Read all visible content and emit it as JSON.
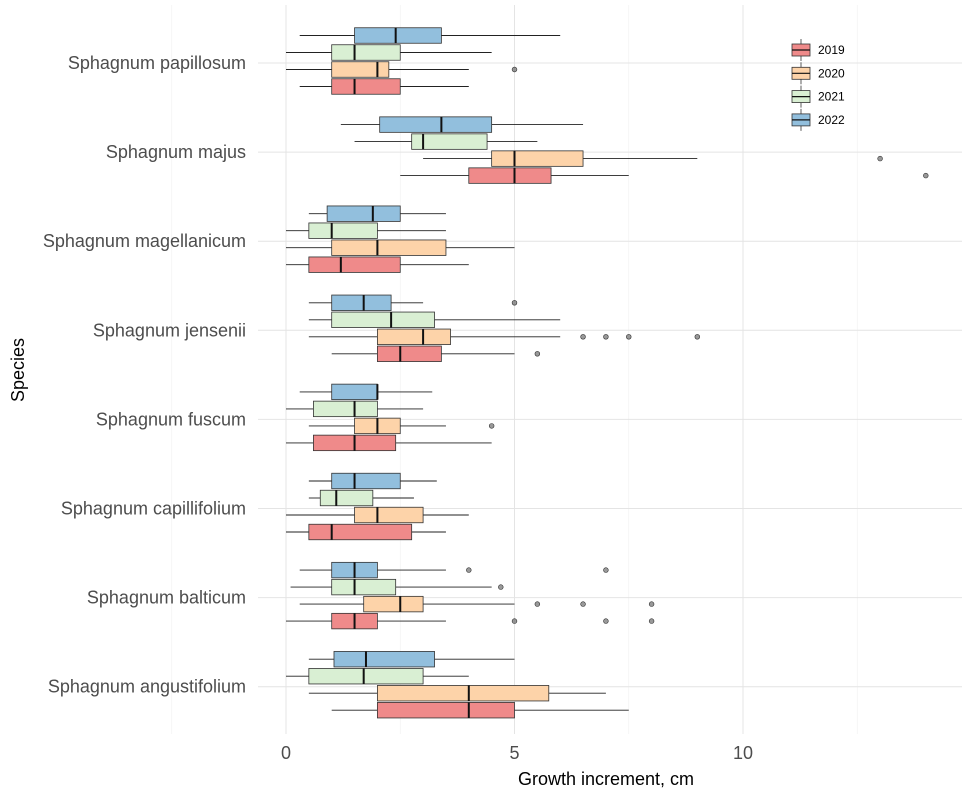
{
  "chart_data": {
    "type": "boxplot",
    "orientation": "horizontal",
    "xlabel": "Growth increment, cm",
    "ylabel": "Species",
    "xlim": [
      -1.2,
      14.7
    ],
    "x_ticks": [
      0,
      5,
      10
    ],
    "grid": true,
    "legend": {
      "placement": "top-right",
      "entries": [
        "2019",
        "2020",
        "2021",
        "2022"
      ]
    },
    "colors": {
      "2019": "#ef8a8a",
      "2020": "#fdd3a9",
      "2021": "#d9efd3",
      "2022": "#92bfdd"
    },
    "categories": [
      "Sphagnum papillosum",
      "Sphagnum majus",
      "Sphagnum magellanicum",
      "Sphagnum jensenii",
      "Sphagnum fuscum",
      "Sphagnum capillifolium",
      "Sphagnum balticum",
      "Sphagnum angustifolium"
    ],
    "series": [
      {
        "name": "2019",
        "boxes": [
          {
            "whisker_low": 0.3,
            "q1": 1.0,
            "median": 1.5,
            "q3": 2.5,
            "whisker_high": 4.0,
            "outliers": []
          },
          {
            "whisker_low": 2.5,
            "q1": 4.0,
            "median": 5.0,
            "q3": 5.8,
            "whisker_high": 7.5,
            "outliers": [
              14.0
            ]
          },
          {
            "whisker_low": 0.0,
            "q1": 0.5,
            "median": 1.2,
            "q3": 2.5,
            "whisker_high": 4.0,
            "outliers": []
          },
          {
            "whisker_low": 1.0,
            "q1": 2.0,
            "median": 2.5,
            "q3": 3.4,
            "whisker_high": 5.0,
            "outliers": [
              5.5
            ]
          },
          {
            "whisker_low": 0.0,
            "q1": 0.6,
            "median": 1.5,
            "q3": 2.4,
            "whisker_high": 4.5,
            "outliers": []
          },
          {
            "whisker_low": 0.0,
            "q1": 0.5,
            "median": 1.0,
            "q3": 2.75,
            "whisker_high": 3.5,
            "outliers": []
          },
          {
            "whisker_low": 0.0,
            "q1": 1.0,
            "median": 1.5,
            "q3": 2.0,
            "whisker_high": 3.5,
            "outliers": [
              5.0,
              7.0,
              8.0
            ]
          },
          {
            "whisker_low": 1.0,
            "q1": 2.0,
            "median": 4.0,
            "q3": 5.0,
            "whisker_high": 7.5,
            "outliers": []
          }
        ]
      },
      {
        "name": "2020",
        "boxes": [
          {
            "whisker_low": 0.0,
            "q1": 1.0,
            "median": 2.0,
            "q3": 2.25,
            "whisker_high": 4.0,
            "outliers": [
              5.0
            ]
          },
          {
            "whisker_low": 3.0,
            "q1": 4.5,
            "median": 5.0,
            "q3": 6.5,
            "whisker_high": 9.0,
            "outliers": [
              13.0
            ]
          },
          {
            "whisker_low": 0.0,
            "q1": 1.0,
            "median": 2.0,
            "q3": 3.5,
            "whisker_high": 5.0,
            "outliers": []
          },
          {
            "whisker_low": 0.5,
            "q1": 2.0,
            "median": 3.0,
            "q3": 3.6,
            "whisker_high": 6.0,
            "outliers": [
              6.5,
              7.0,
              7.5,
              9.0
            ]
          },
          {
            "whisker_low": 0.5,
            "q1": 1.5,
            "median": 2.0,
            "q3": 2.5,
            "whisker_high": 3.5,
            "outliers": [
              4.5
            ]
          },
          {
            "whisker_low": 0.0,
            "q1": 1.5,
            "median": 2.0,
            "q3": 3.0,
            "whisker_high": 4.0,
            "outliers": []
          },
          {
            "whisker_low": 0.3,
            "q1": 1.7,
            "median": 2.5,
            "q3": 3.0,
            "whisker_high": 5.0,
            "outliers": [
              5.5,
              6.5,
              8.0
            ]
          },
          {
            "whisker_low": 0.5,
            "q1": 2.0,
            "median": 4.0,
            "q3": 5.75,
            "whisker_high": 7.0,
            "outliers": []
          }
        ]
      },
      {
        "name": "2021",
        "boxes": [
          {
            "whisker_low": 0.0,
            "q1": 1.0,
            "median": 1.5,
            "q3": 2.5,
            "whisker_high": 4.5,
            "outliers": []
          },
          {
            "whisker_low": 1.5,
            "q1": 2.75,
            "median": 3.0,
            "q3": 4.4,
            "whisker_high": 5.5,
            "outliers": []
          },
          {
            "whisker_low": 0.0,
            "q1": 0.5,
            "median": 1.0,
            "q3": 2.0,
            "whisker_high": 3.5,
            "outliers": []
          },
          {
            "whisker_low": 0.5,
            "q1": 1.0,
            "median": 2.3,
            "q3": 3.25,
            "whisker_high": 6.0,
            "outliers": []
          },
          {
            "whisker_low": 0.0,
            "q1": 0.6,
            "median": 1.5,
            "q3": 2.0,
            "whisker_high": 3.0,
            "outliers": []
          },
          {
            "whisker_low": 0.5,
            "q1": 0.75,
            "median": 1.1,
            "q3": 1.9,
            "whisker_high": 2.8,
            "outliers": []
          },
          {
            "whisker_low": 0.1,
            "q1": 1.0,
            "median": 1.5,
            "q3": 2.4,
            "whisker_high": 4.5,
            "outliers": [
              4.7
            ]
          },
          {
            "whisker_low": 0.0,
            "q1": 0.5,
            "median": 1.7,
            "q3": 3.0,
            "whisker_high": 4.0,
            "outliers": []
          }
        ]
      },
      {
        "name": "2022",
        "boxes": [
          {
            "whisker_low": 0.3,
            "q1": 1.5,
            "median": 2.4,
            "q3": 3.4,
            "whisker_high": 6.0,
            "outliers": []
          },
          {
            "whisker_low": 1.2,
            "q1": 2.05,
            "median": 3.4,
            "q3": 4.5,
            "whisker_high": 6.5,
            "outliers": []
          },
          {
            "whisker_low": 0.5,
            "q1": 0.9,
            "median": 1.9,
            "q3": 2.5,
            "whisker_high": 3.5,
            "outliers": []
          },
          {
            "whisker_low": 0.5,
            "q1": 1.0,
            "median": 1.7,
            "q3": 2.3,
            "whisker_high": 3.0,
            "outliers": [
              5.0
            ]
          },
          {
            "whisker_low": 0.3,
            "q1": 1.0,
            "median": 2.0,
            "q3": 2.0,
            "whisker_high": 3.2,
            "outliers": []
          },
          {
            "whisker_low": 0.5,
            "q1": 1.0,
            "median": 1.5,
            "q3": 2.5,
            "whisker_high": 3.3,
            "outliers": []
          },
          {
            "whisker_low": 0.3,
            "q1": 1.0,
            "median": 1.5,
            "q3": 2.0,
            "whisker_high": 3.5,
            "outliers": [
              4.0,
              7.0
            ]
          },
          {
            "whisker_low": 0.5,
            "q1": 1.05,
            "median": 1.75,
            "q3": 3.25,
            "whisker_high": 5.0,
            "outliers": []
          }
        ]
      }
    ]
  }
}
